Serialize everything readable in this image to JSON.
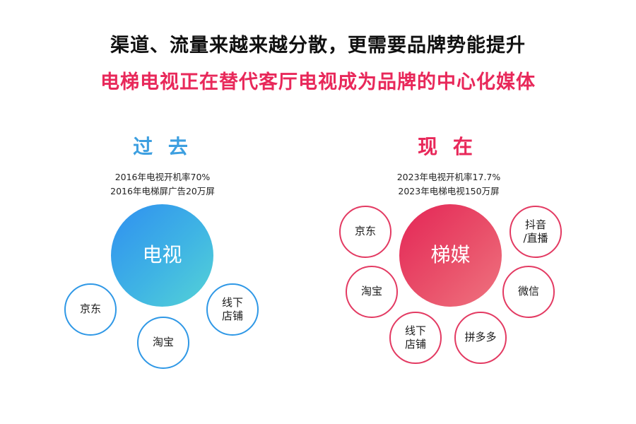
{
  "headline": {
    "line1": "渠道、流量来越来越分散，更需要品牌势能提升",
    "line2": "电梯电视正在替代客厅电视成为品牌的中心化媒体"
  },
  "past": {
    "title": "过 去",
    "stats": [
      "2016年电视开机率70%",
      "2016年电梯屏广告20万屏"
    ],
    "center": "电视",
    "nodes": {
      "jd": "京东",
      "taobao": "淘宝",
      "offline_1": "线下",
      "offline_2": "店铺"
    }
  },
  "now": {
    "title": "现 在",
    "stats": [
      "2023年电视开机率17.7%",
      "2023年电梯电视150万屏"
    ],
    "center": "梯媒",
    "nodes": {
      "jd": "京东",
      "taobao": "淘宝",
      "offline_1": "线下",
      "offline_2": "店铺",
      "douyin_1": "抖音",
      "douyin_2": "/直播",
      "wechat": "微信",
      "pdd": "拼多多"
    }
  },
  "colors": {
    "accent_red": "#e8285a",
    "accent_blue": "#3d9fe0"
  }
}
